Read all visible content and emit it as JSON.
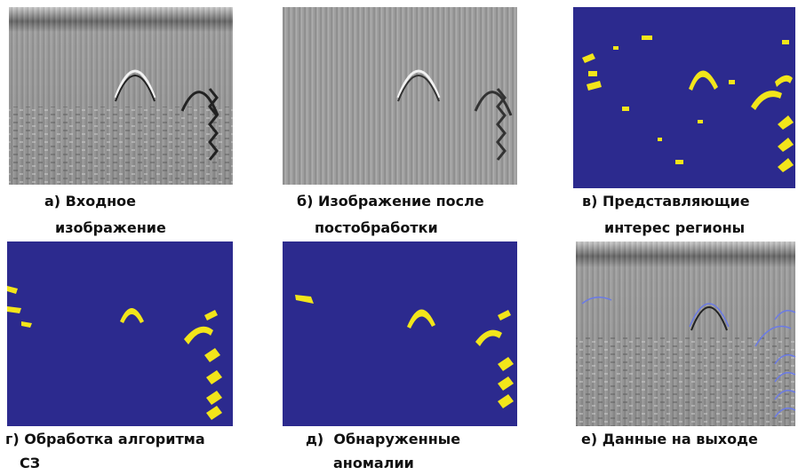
{
  "panels": [
    {
      "caption_lines": [
        "а) Входное",
        "изображение"
      ]
    },
    {
      "caption_lines": [
        "б) Изображение после",
        "постобработки"
      ]
    },
    {
      "caption_lines": [
        "в) Представляющие",
        "интерес регионы"
      ]
    },
    {
      "caption_lines": [
        "г) Обработка алгоритма",
        "СЗ"
      ]
    },
    {
      "caption_lines": [
        "д)  Обнаруженные",
        "аномалии"
      ]
    },
    {
      "caption_lines": [
        "е) Данные на выходе"
      ]
    }
  ]
}
